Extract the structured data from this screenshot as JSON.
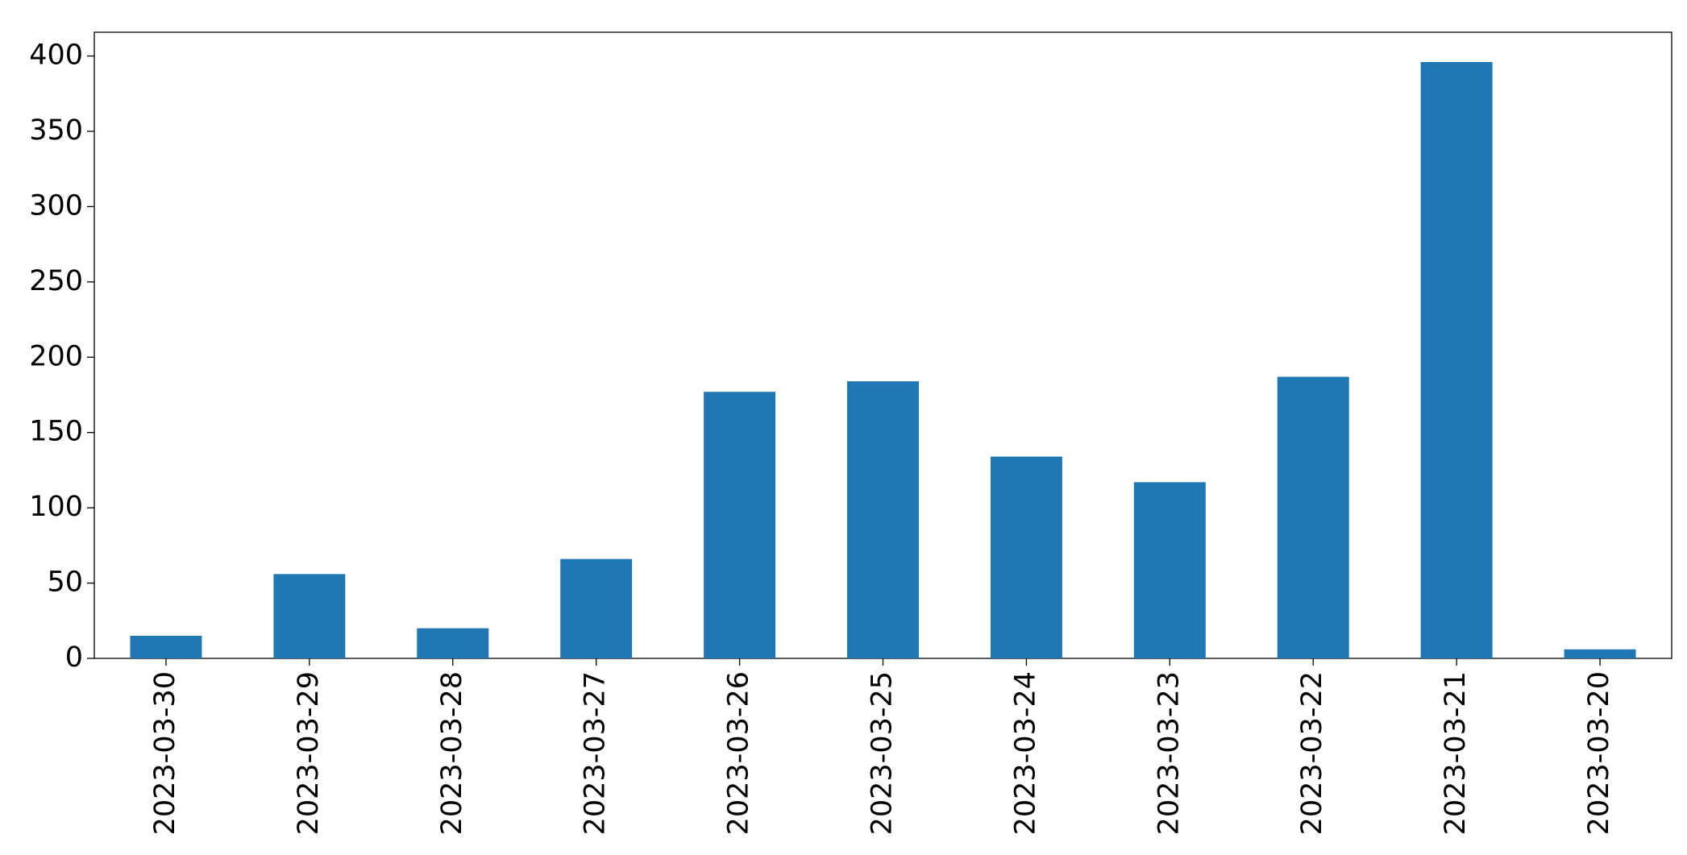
{
  "chart_data": {
    "type": "bar",
    "categories": [
      "2023-03-30",
      "2023-03-29",
      "2023-03-28",
      "2023-03-27",
      "2023-03-26",
      "2023-03-25",
      "2023-03-24",
      "2023-03-23",
      "2023-03-22",
      "2023-03-21",
      "2023-03-20"
    ],
    "values": [
      15,
      56,
      20,
      66,
      177,
      184,
      134,
      117,
      187,
      396,
      6
    ],
    "color": "#1f77b4",
    "ylim": [
      0,
      415.8
    ],
    "yticks": [
      0,
      50,
      100,
      150,
      200,
      250,
      300,
      350,
      400
    ],
    "grid": false
  }
}
